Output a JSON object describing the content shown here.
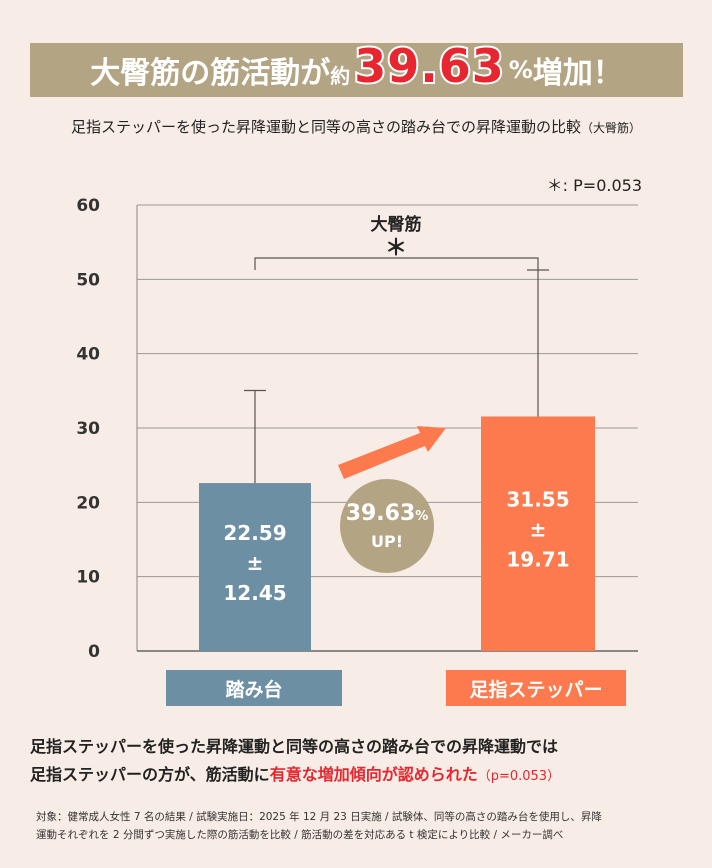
{
  "header": {
    "part1": "大臀筋の筋活動が",
    "part2": "約",
    "percent": "39.63",
    "percent_sign": "%",
    "part3": "増加！"
  },
  "subtitle": "足指ステッパーを使った昇降運動と同等の高さの踏み台での昇降運動の比較",
  "subtitle_paren": "（大臀筋）",
  "significance_note": "＊: P=0.053",
  "badge": {
    "value": "39.63",
    "unit": "%",
    "up": "UP!"
  },
  "conclusion": {
    "line1": "足指ステッパーを使った昇降運動と同等の高さの踏み台での昇降運動では",
    "line2_a": "足指ステッパーの方が、筋活動に",
    "line2_b": "有意な増加傾向が認められた",
    "line2_c": "（p=0.053）"
  },
  "footnote": {
    "line1": "対象：健常成人女性 7 名の結果 / 試験実施日：2025 年 12 月 23 日実施 / 試験体、同等の高さの踏み台を使用し、昇降",
    "line2": "運動それぞれを 2 分間ずつ実施した際の筋活動を比較 / 筋活動の差を対応ある t 検定により比較 / メーカー調べ"
  },
  "colors": {
    "bar1": "#6d8fa3",
    "bar2": "#fc7a4d",
    "accent": "#e8262f",
    "banner": "#b3a483",
    "background": "#f8ede6"
  },
  "chart_data": {
    "type": "bar",
    "title": "大臀筋",
    "significance_marker": "＊",
    "categories": [
      "踏み台",
      "足指ステッパー"
    ],
    "values": [
      22.59,
      31.55
    ],
    "errors": [
      12.45,
      19.71
    ],
    "value_labels": [
      [
        "22.59",
        "±",
        "12.45"
      ],
      [
        "31.55",
        "±",
        "19.71"
      ]
    ],
    "ylim": [
      0,
      60
    ],
    "yticks": [
      0,
      10,
      20,
      30,
      40,
      50,
      60
    ],
    "grid": true
  }
}
